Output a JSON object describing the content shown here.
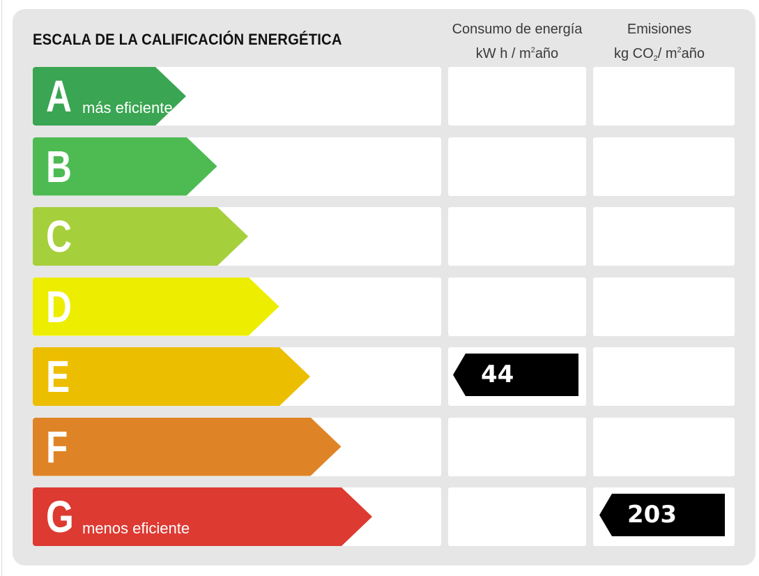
{
  "title": "ESCALA DE LA CALIFICACIÓN ENERGÉTICA",
  "columns": {
    "energy": {
      "line1": "Consumo de energía",
      "line2_pre": "kW h / m",
      "line2_sup": "2",
      "line2_post": "año"
    },
    "emissions": {
      "line1": "Emisiones",
      "line2_pre": "kg CO",
      "line2_sub": "2",
      "line2_mid": "/ m",
      "line2_sup": "2",
      "line2_post": "año"
    }
  },
  "chart_data": {
    "type": "bar",
    "title": "ESCALA DE LA CALIFICACIÓN ENERGÉTICA",
    "categories": [
      "A",
      "B",
      "C",
      "D",
      "E",
      "F",
      "G"
    ],
    "category_notes": {
      "A": "más eficiente",
      "G": "menos eficiente"
    },
    "category_colors": [
      "#3aa552",
      "#4dbb52",
      "#a6cf3c",
      "#eded00",
      "#ecbe00",
      "#df8426",
      "#dd3a32"
    ],
    "ratings": [
      {
        "column": "Consumo de energía",
        "unit": "kW h / m²año",
        "class": "E",
        "value": 44
      },
      {
        "column": "Emisiones",
        "unit": "kg CO₂/ m²año",
        "class": "G",
        "value": 203
      }
    ]
  }
}
